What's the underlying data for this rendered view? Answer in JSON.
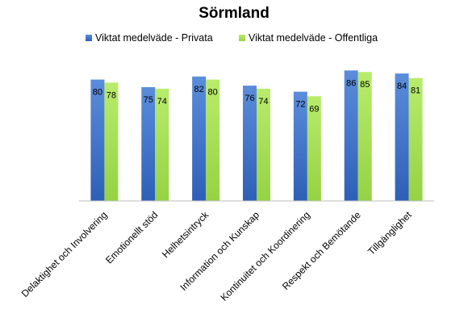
{
  "chart_data": {
    "type": "bar",
    "title": "Sörmland",
    "categories": [
      "Delaktighet och Involvering",
      "Emotionellt stöd",
      "Helhetsintryck",
      "Information och Kunskap",
      "Kontinuitet och Koordinering",
      "Respekt och Bemötande",
      "Tillgänglighet"
    ],
    "series": [
      {
        "name": "Viktat medelväde - Privata",
        "values": [
          80,
          75,
          82,
          76,
          72,
          86,
          84
        ],
        "color": "#4472C4"
      },
      {
        "name": "Viktat medelväde - Offentliga",
        "values": [
          78,
          74,
          80,
          74,
          69,
          85,
          81
        ],
        "color": "#A6E05A"
      }
    ],
    "ylim": [
      0,
      100
    ],
    "xlabel": "",
    "ylabel": "",
    "grid": false,
    "legend_position": "top",
    "data_labels": true
  }
}
